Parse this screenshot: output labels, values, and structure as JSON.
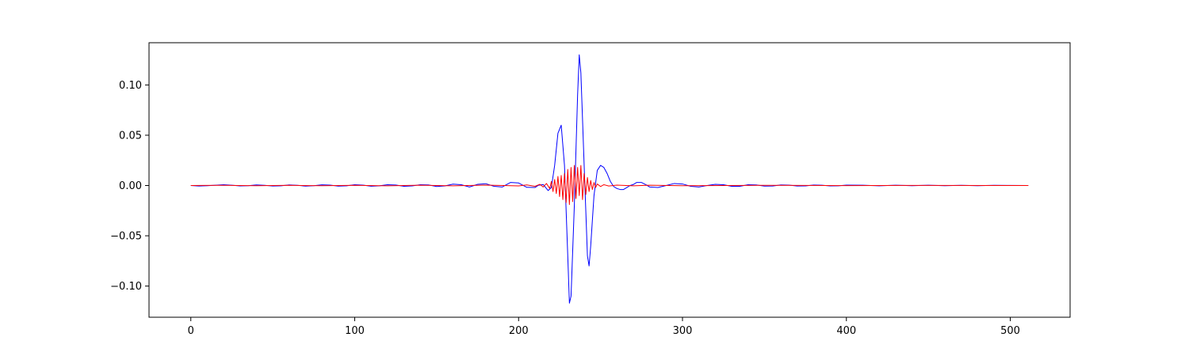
{
  "chart_data": {
    "type": "line",
    "title": "",
    "xlabel": "",
    "ylabel": "",
    "xlim": [
      -25.5,
      536.5
    ],
    "ylim": [
      -0.131,
      0.142
    ],
    "xticks": [
      0,
      100,
      200,
      300,
      400,
      500
    ],
    "xtick_labels": [
      "0",
      "100",
      "200",
      "300",
      "400",
      "500"
    ],
    "yticks": [
      -0.1,
      -0.05,
      0.0,
      0.05,
      0.1
    ],
    "ytick_labels": [
      "−0.10",
      "−0.05",
      "0.00",
      "0.05",
      "0.10"
    ],
    "grid": false,
    "legend": "none",
    "series": [
      {
        "color": "#0000ff",
        "x": [
          0,
          5,
          10,
          15,
          20,
          25,
          30,
          35,
          40,
          45,
          50,
          55,
          60,
          65,
          70,
          75,
          80,
          85,
          90,
          95,
          100,
          105,
          110,
          115,
          120,
          125,
          130,
          135,
          140,
          145,
          150,
          155,
          160,
          165,
          170,
          175,
          180,
          185,
          190,
          195,
          200,
          205,
          210,
          212,
          215,
          218,
          220,
          222,
          224,
          226,
          228,
          230,
          231,
          232,
          234,
          236,
          237,
          238,
          240,
          242,
          243,
          244,
          246,
          248,
          250,
          252,
          254,
          256,
          258,
          260,
          262,
          264,
          266,
          268,
          270,
          272,
          275,
          278,
          280,
          285,
          290,
          295,
          300,
          305,
          310,
          315,
          320,
          325,
          330,
          335,
          340,
          345,
          350,
          355,
          360,
          365,
          370,
          375,
          380,
          385,
          390,
          395,
          400,
          410,
          420,
          430,
          440,
          450,
          460,
          470,
          480,
          490,
          500,
          511
        ],
        "values": [
          0.0,
          -0.0005,
          -0.0002,
          0.0003,
          0.0008,
          0.0003,
          -0.0004,
          -0.0002,
          0.0006,
          0.0002,
          -0.0005,
          -0.0003,
          0.0006,
          0.0002,
          -0.0006,
          -0.0002,
          0.0007,
          0.0004,
          -0.0006,
          -0.0003,
          0.0008,
          0.0004,
          -0.0007,
          -0.0003,
          0.0008,
          0.0005,
          -0.0008,
          -0.0004,
          0.0008,
          0.0006,
          -0.001,
          -0.0004,
          0.0014,
          0.0008,
          -0.0015,
          0.0012,
          0.0018,
          -0.0008,
          -0.0015,
          0.003,
          0.0025,
          -0.0018,
          -0.002,
          0.0002,
          0.001,
          -0.005,
          -0.002,
          0.02,
          0.052,
          0.06,
          0.02,
          -0.07,
          -0.117,
          -0.11,
          -0.02,
          0.09,
          0.13,
          0.112,
          0.02,
          -0.07,
          -0.08,
          -0.06,
          -0.01,
          0.015,
          0.02,
          0.018,
          0.012,
          0.004,
          -0.001,
          -0.003,
          -0.004,
          -0.004,
          -0.002,
          0.0,
          0.001,
          0.003,
          0.003,
          0.0005,
          -0.0015,
          -0.002,
          0.0,
          0.002,
          0.0015,
          -0.0008,
          -0.0015,
          0.0,
          0.0012,
          0.0008,
          -0.0008,
          -0.0008,
          0.0008,
          0.0006,
          -0.0006,
          -0.0005,
          0.0006,
          0.0004,
          -0.0005,
          -0.0004,
          0.0005,
          0.0003,
          -0.0004,
          -0.0003,
          0.0004,
          0.0003,
          -0.0003,
          0.0003,
          -0.0002,
          0.0003,
          -0.0002,
          0.0002,
          -0.0002,
          0.0002,
          0.0001,
          0.0
        ]
      },
      {
        "color": "#ff0000",
        "x": [
          0,
          20,
          40,
          60,
          80,
          100,
          120,
          140,
          160,
          180,
          200,
          205,
          210,
          213,
          215,
          217,
          219,
          220,
          221,
          222,
          223,
          224,
          225,
          226,
          227,
          228,
          229,
          230,
          231,
          232,
          233,
          234,
          235,
          236,
          237,
          238,
          239,
          240,
          241,
          242,
          243,
          244,
          245,
          246,
          247,
          248,
          250,
          252,
          255,
          260,
          270,
          280,
          300,
          350,
          400,
          450,
          511
        ],
        "values": [
          0.0,
          0.0002,
          -0.0002,
          0.0002,
          -0.0002,
          0.0002,
          -0.0003,
          0.0003,
          -0.0003,
          0.0004,
          -0.0004,
          0.0006,
          -0.0008,
          0.0012,
          -0.0015,
          0.002,
          -0.003,
          0.004,
          -0.006,
          0.006,
          -0.008,
          0.009,
          -0.011,
          0.01,
          -0.014,
          0.012,
          -0.017,
          0.016,
          -0.019,
          0.018,
          -0.016,
          0.02,
          -0.013,
          0.018,
          -0.01,
          0.02,
          -0.014,
          0.012,
          -0.009,
          0.008,
          -0.006,
          0.005,
          -0.004,
          0.003,
          -0.002,
          0.0015,
          -0.001,
          0.0008,
          -0.0005,
          0.0004,
          -0.0003,
          0.0003,
          -0.0002,
          0.0002,
          -0.0001,
          0.0001,
          0.0
        ]
      }
    ]
  }
}
